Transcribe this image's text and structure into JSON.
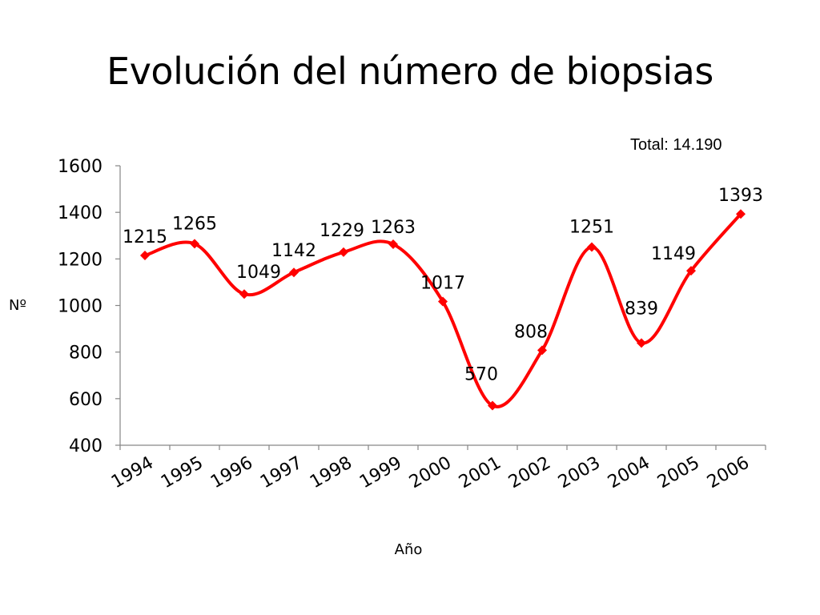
{
  "slide": {
    "title": "Evolución del número de biopsias",
    "total_label": "Total: 14.190"
  },
  "chart_data": {
    "type": "line",
    "title": "",
    "xlabel": "Año",
    "ylabel": "Nº",
    "categories": [
      "1994",
      "1995",
      "1996",
      "1997",
      "1998",
      "1999",
      "2000",
      "2001",
      "2002",
      "2003",
      "2004",
      "2005",
      "2006"
    ],
    "series": [
      {
        "values": [
          1215,
          1265,
          1049,
          1142,
          1229,
          1263,
          1017,
          570,
          808,
          1251,
          839,
          1149,
          1393
        ],
        "color": "#ff0000",
        "marker": "diamond",
        "smooth": true,
        "data_labels": true
      }
    ],
    "ylim": [
      400,
      1600
    ],
    "yticks": [
      400,
      600,
      800,
      1000,
      1200,
      1400,
      1600
    ],
    "grid": false,
    "legend": "none"
  }
}
